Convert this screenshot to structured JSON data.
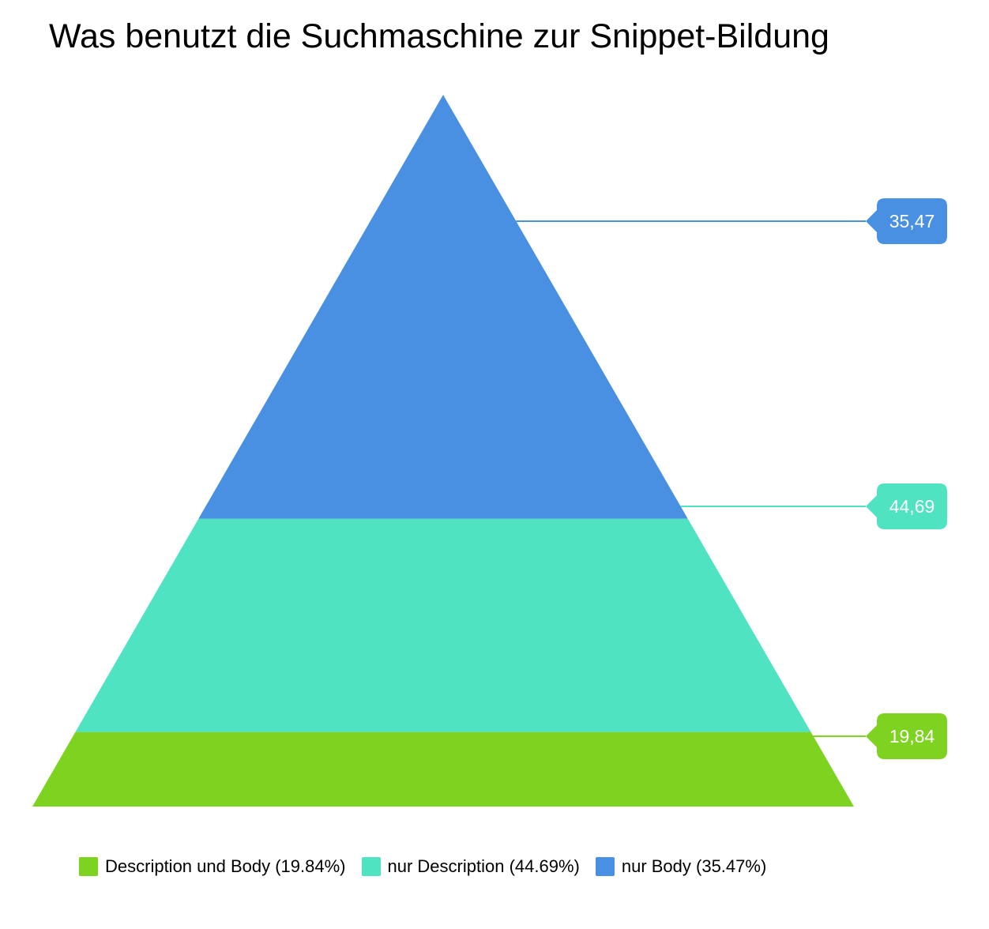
{
  "chart_data": {
    "type": "pyramid",
    "title": "Was benutzt die Suchmaschine zur Snippet-Bildung",
    "segments": [
      {
        "name": "Description und Body",
        "value": 19.84,
        "label": "19,84",
        "legend_label": "Description und Body (19.84%)",
        "color": "#7ed321"
      },
      {
        "name": "nur Description",
        "value": 44.69,
        "label": "44,69",
        "legend_label": "nur Description (44.69%)",
        "color": "#50e3c2"
      },
      {
        "name": "nur Body",
        "value": 35.47,
        "label": "35,47",
        "legend_label": "nur Body (35.47%)",
        "color": "#4a90e2"
      }
    ],
    "legend_position": "bottom",
    "segment_order": "bottom-to-top"
  }
}
